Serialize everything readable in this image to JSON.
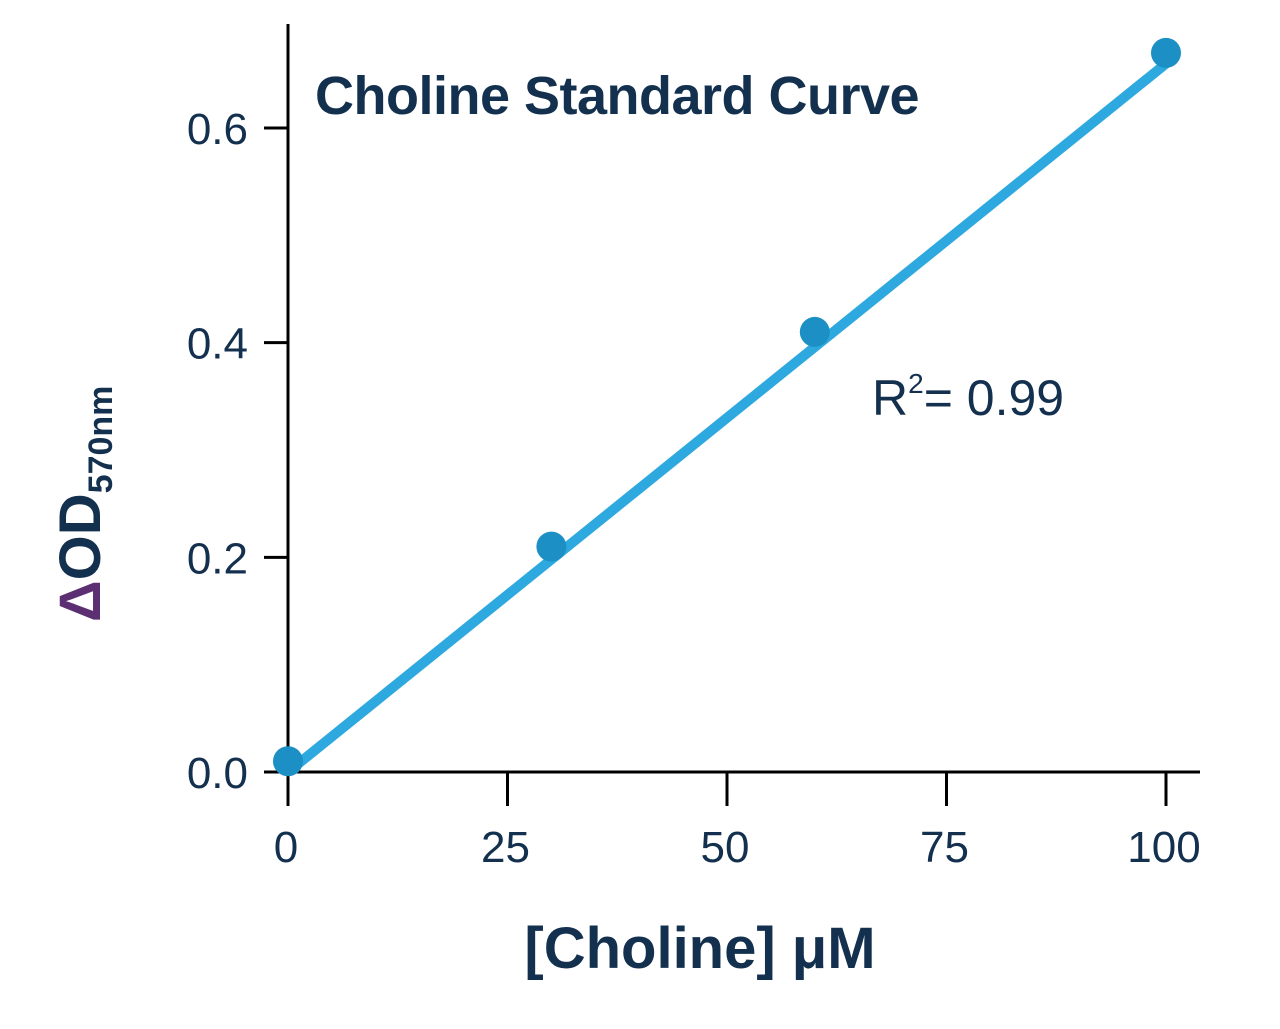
{
  "chart_data": {
    "type": "scatter",
    "title": "Choline Standard Curve",
    "xlabel": "[Choline] μM",
    "ylabel": {
      "delta": "Δ",
      "main": "OD",
      "subscript": "570nm"
    },
    "xlim": [
      0,
      100
    ],
    "ylim": [
      0,
      0.7
    ],
    "x_ticks": [
      0,
      25,
      50,
      75,
      100
    ],
    "x_tick_labels": [
      "0",
      "25",
      "50",
      "75",
      "100"
    ],
    "y_ticks": [
      0,
      0.2,
      0.4,
      0.6
    ],
    "y_tick_labels": [
      "0.0",
      "0.2",
      "0.4",
      "0.6"
    ],
    "points": [
      {
        "x": 0,
        "y": 0.01
      },
      {
        "x": 30,
        "y": 0.21
      },
      {
        "x": 60,
        "y": 0.41
      },
      {
        "x": 100,
        "y": 0.67
      }
    ],
    "fit_line": {
      "x": [
        0,
        100
      ],
      "y": [
        0.0,
        0.66
      ]
    },
    "annotation": {
      "main": "R",
      "sup": "2",
      "rest": "= 0.99"
    },
    "colors": {
      "axis": "#000000",
      "text": "#14304f",
      "point": "#1c8fc4",
      "line": "#2ea9df",
      "delta": "#5b2f72"
    },
    "grid": false
  }
}
